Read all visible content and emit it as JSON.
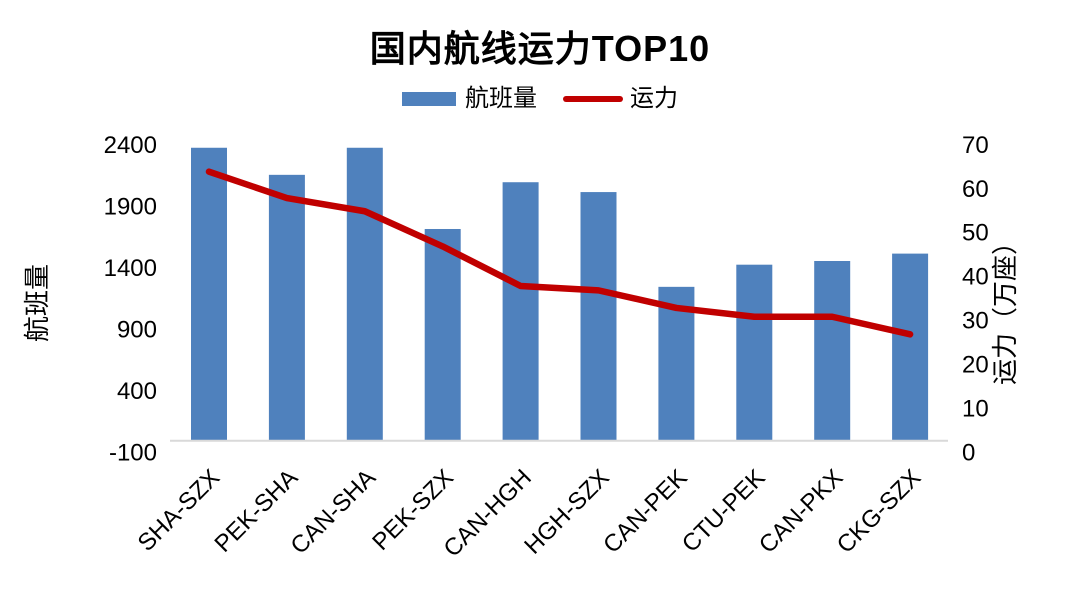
{
  "title": "国内航线运力TOP10",
  "legend": {
    "bar_label": "航班量",
    "line_label": "运力"
  },
  "colors": {
    "bar": "#4F81BD",
    "line": "#C00000",
    "axis_line": "#D9D9D9",
    "text": "#000000"
  },
  "chart_data": {
    "type": "bar",
    "subtype": "combo-bar-line-dual-axis",
    "title": "国内航线运力TOP10",
    "categories": [
      "SHA-SZX",
      "PEK-SHA",
      "CAN-SHA",
      "PEK-SZX",
      "CAN-HGH",
      "HGH-SZX",
      "CAN-PEK",
      "CTU-PEK",
      "CAN-PKX",
      "CKG-SZX"
    ],
    "series": [
      {
        "name": "航班量",
        "type": "bar",
        "axis": "left",
        "color": "#4F81BD",
        "values": [
          2380,
          2160,
          2380,
          1720,
          2100,
          2020,
          1250,
          1430,
          1460,
          1520
        ]
      },
      {
        "name": "运力",
        "type": "line",
        "axis": "right",
        "color": "#C00000",
        "values": [
          64,
          58,
          55,
          47,
          38,
          37,
          33,
          31,
          31,
          27
        ]
      }
    ],
    "left_axis": {
      "title": "航班量",
      "min": -100,
      "max": 2400,
      "ticks": [
        "2400",
        "1900",
        "1400",
        "900",
        "400",
        "-100"
      ]
    },
    "right_axis": {
      "title": "运力（万座）",
      "min": 0,
      "max": 70,
      "ticks": [
        "70",
        "60",
        "50",
        "40",
        "30",
        "20",
        "10",
        "0"
      ]
    },
    "grid": false,
    "legend_position": "top",
    "x_tick_rotation": -45
  }
}
